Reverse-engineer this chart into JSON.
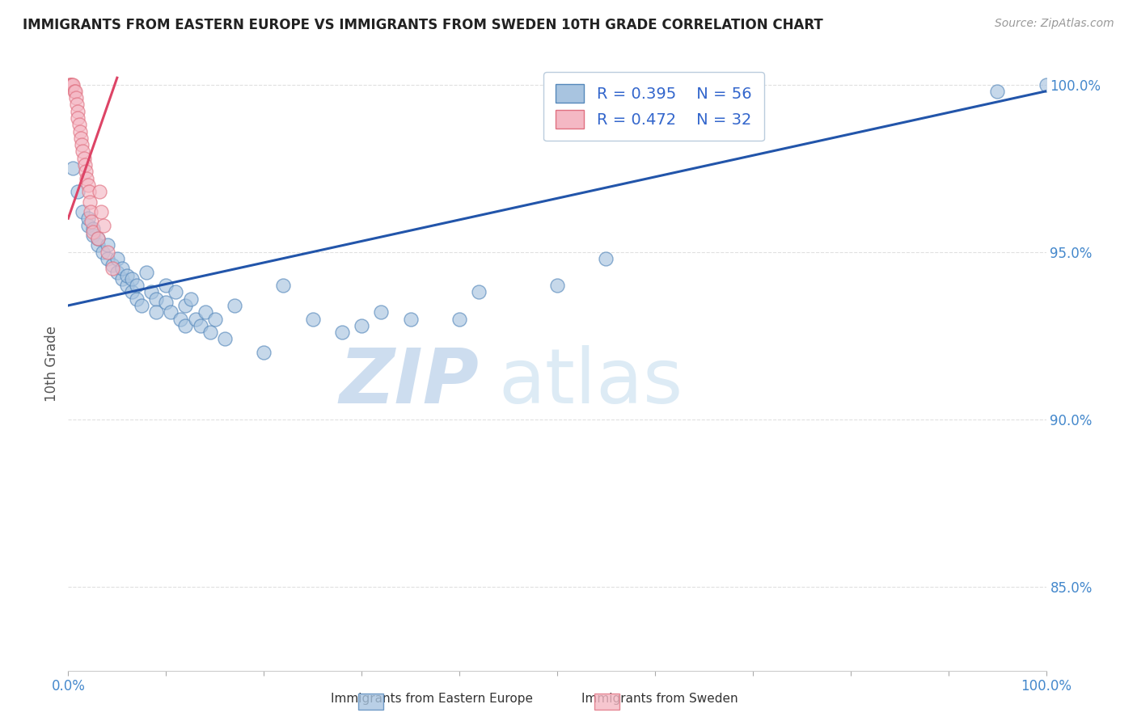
{
  "title": "IMMIGRANTS FROM EASTERN EUROPE VS IMMIGRANTS FROM SWEDEN 10TH GRADE CORRELATION CHART",
  "source": "Source: ZipAtlas.com",
  "ylabel": "10th Grade",
  "y_ticks": [
    0.85,
    0.9,
    0.95,
    1.0
  ],
  "y_tick_labels": [
    "85.0%",
    "90.0%",
    "95.0%",
    "100.0%"
  ],
  "x_ticks": [
    0.0,
    0.1,
    0.2,
    0.3,
    0.4,
    0.5,
    0.6,
    0.7,
    0.8,
    0.9,
    1.0
  ],
  "legend_r1": "R = 0.395",
  "legend_n1": "N = 56",
  "legend_r2": "R = 0.472",
  "legend_n2": "N = 32",
  "legend_label1": "Immigrants from Eastern Europe",
  "legend_label2": "Immigrants from Sweden",
  "blue_color": "#A8C4E0",
  "pink_color": "#F4B8C4",
  "blue_edge_color": "#5588BB",
  "pink_edge_color": "#E07080",
  "blue_line_color": "#2255AA",
  "pink_line_color": "#DD4466",
  "blue_scatter_x": [
    0.005,
    0.01,
    0.015,
    0.02,
    0.02,
    0.025,
    0.025,
    0.03,
    0.03,
    0.035,
    0.04,
    0.04,
    0.045,
    0.05,
    0.05,
    0.055,
    0.055,
    0.06,
    0.06,
    0.065,
    0.065,
    0.07,
    0.07,
    0.075,
    0.08,
    0.085,
    0.09,
    0.09,
    0.1,
    0.1,
    0.105,
    0.11,
    0.115,
    0.12,
    0.12,
    0.125,
    0.13,
    0.135,
    0.14,
    0.145,
    0.15,
    0.16,
    0.17,
    0.2,
    0.22,
    0.25,
    0.28,
    0.3,
    0.32,
    0.35,
    0.4,
    0.42,
    0.5,
    0.55,
    0.95,
    1.0
  ],
  "blue_scatter_y": [
    0.975,
    0.968,
    0.962,
    0.958,
    0.96,
    0.955,
    0.957,
    0.952,
    0.954,
    0.95,
    0.948,
    0.952,
    0.946,
    0.944,
    0.948,
    0.942,
    0.945,
    0.94,
    0.943,
    0.938,
    0.942,
    0.936,
    0.94,
    0.934,
    0.944,
    0.938,
    0.936,
    0.932,
    0.94,
    0.935,
    0.932,
    0.938,
    0.93,
    0.934,
    0.928,
    0.936,
    0.93,
    0.928,
    0.932,
    0.926,
    0.93,
    0.924,
    0.934,
    0.92,
    0.94,
    0.93,
    0.926,
    0.928,
    0.932,
    0.93,
    0.93,
    0.938,
    0.94,
    0.948,
    0.998,
    1.0
  ],
  "pink_scatter_x": [
    0.001,
    0.002,
    0.003,
    0.004,
    0.005,
    0.006,
    0.007,
    0.008,
    0.009,
    0.01,
    0.01,
    0.011,
    0.012,
    0.013,
    0.014,
    0.015,
    0.016,
    0.017,
    0.018,
    0.019,
    0.02,
    0.021,
    0.022,
    0.023,
    0.024,
    0.025,
    0.03,
    0.032,
    0.034,
    0.036,
    0.04,
    0.045
  ],
  "pink_scatter_y": [
    1.0,
    1.0,
    1.0,
    1.0,
    1.0,
    0.998,
    0.998,
    0.996,
    0.994,
    0.992,
    0.99,
    0.988,
    0.986,
    0.984,
    0.982,
    0.98,
    0.978,
    0.976,
    0.974,
    0.972,
    0.97,
    0.968,
    0.965,
    0.962,
    0.959,
    0.956,
    0.954,
    0.968,
    0.962,
    0.958,
    0.95,
    0.945
  ],
  "blue_line_x0": 0.0,
  "blue_line_y0": 0.934,
  "blue_line_x1": 1.0,
  "blue_line_y1": 0.998,
  "pink_line_x0": 0.0,
  "pink_line_y0": 0.96,
  "pink_line_x1": 0.05,
  "pink_line_y1": 1.002,
  "watermark_zip": "ZIP",
  "watermark_atlas": "atlas",
  "ylim_min": 0.825,
  "ylim_max": 1.008,
  "background_color": "#FFFFFF",
  "grid_color": "#DDDDDD"
}
